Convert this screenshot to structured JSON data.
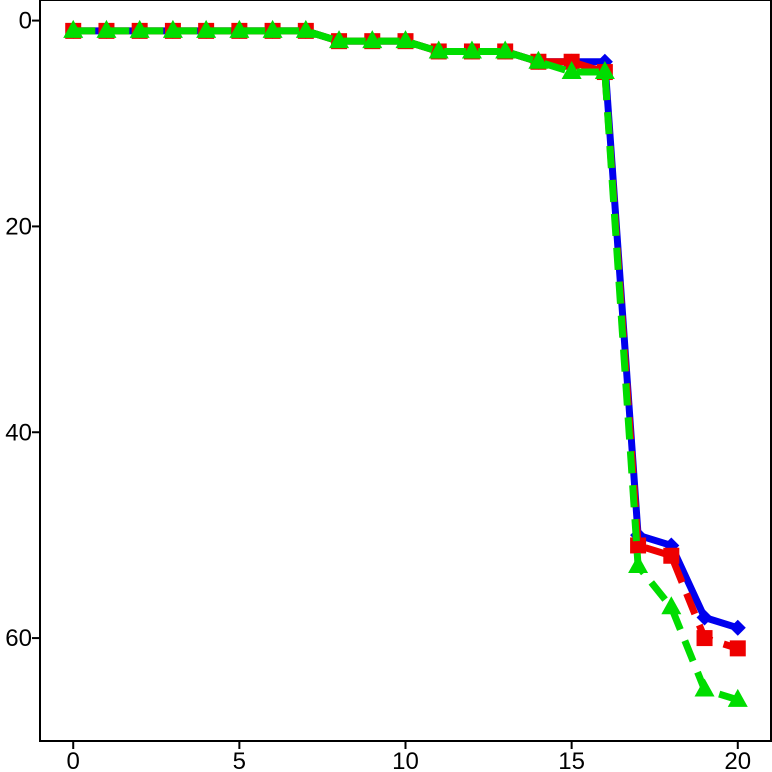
{
  "chart_data": {
    "type": "line",
    "title": "",
    "xlabel": "",
    "ylabel": "",
    "xlim": [
      -1,
      21
    ],
    "ylim": [
      70,
      -2
    ],
    "y_inverted": true,
    "grid": false,
    "legend": "none",
    "x_ticks": [
      0,
      5,
      10,
      15,
      20
    ],
    "x_tick_labels": [
      "0",
      "5",
      "10",
      "15",
      "20"
    ],
    "y_ticks": [
      0,
      20,
      40,
      60
    ],
    "y_tick_labels": [
      "0",
      "20",
      "40",
      "60"
    ],
    "x": [
      0,
      1,
      2,
      3,
      4,
      5,
      6,
      7,
      8,
      9,
      10,
      11,
      12,
      13,
      14,
      15,
      16,
      17,
      18,
      19,
      20
    ],
    "series": [
      {
        "color": "#0000ee",
        "line_style": "solid",
        "marker": "diamond",
        "values": [
          1,
          1,
          1,
          1,
          1,
          1,
          1,
          1,
          2,
          2,
          2,
          3,
          3,
          3,
          4,
          4,
          4,
          50,
          51,
          58,
          59
        ]
      },
      {
        "color": "#ee0000",
        "line_style": "dashed",
        "marker": "square",
        "values": [
          1,
          1,
          1,
          1,
          1,
          1,
          1,
          1,
          2,
          2,
          2,
          3,
          3,
          3,
          4,
          4,
          5,
          51,
          52,
          60,
          61
        ]
      },
      {
        "color": "#00dd00",
        "line_style": "dashed",
        "marker": "triangle",
        "values": [
          1,
          1,
          1,
          1,
          1,
          1,
          1,
          1,
          2,
          2,
          2,
          3,
          3,
          3,
          4,
          5,
          5,
          53,
          57,
          65,
          66
        ]
      }
    ]
  }
}
